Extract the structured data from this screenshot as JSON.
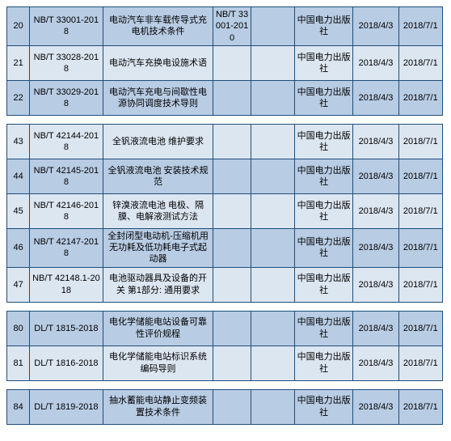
{
  "table": {
    "background_even": "#b8cce4",
    "background_odd": "#dce6f1",
    "border_color": "#1f4e79",
    "font_size": 11,
    "columns": [
      "idx",
      "std",
      "title",
      "replace",
      "col5",
      "publisher",
      "date1",
      "date2"
    ],
    "groups": [
      [
        {
          "idx": "20",
          "std": "NB/T 33001-2018",
          "title": "电动汽车非车载传导式充电机技术条件",
          "replace": "NB/T 33001-2010",
          "col5": "",
          "publisher": "中国电力出版社",
          "date1": "2018/4/3",
          "date2": "2018/7/1"
        },
        {
          "idx": "21",
          "std": "NB/T 33028-2018",
          "title": "电动汽车充换电设施术语",
          "replace": "",
          "col5": "",
          "publisher": "中国电力出版社",
          "date1": "2018/4/3",
          "date2": "2018/7/1"
        },
        {
          "idx": "22",
          "std": "NB/T 33029-2018",
          "title": "电动汽车充电与间歇性电源协同调度技术导则",
          "replace": "",
          "col5": "",
          "publisher": "中国电力出版社",
          "date1": "2018/4/3",
          "date2": "2018/7/1"
        }
      ],
      [
        {
          "idx": "43",
          "std": "NB/T 42144-2018",
          "title": "全钒液流电池 维护要求",
          "replace": "",
          "col5": "",
          "publisher": "中国电力出版社",
          "date1": "2018/4/3",
          "date2": "2018/7/1"
        },
        {
          "idx": "44",
          "std": "NB/T 42145-2018",
          "title": "全钒液流电池 安装技术规范",
          "replace": "",
          "col5": "",
          "publisher": "中国电力出版社",
          "date1": "2018/4/3",
          "date2": "2018/7/1"
        },
        {
          "idx": "45",
          "std": "NB/T 42146-2018",
          "title": "锌溴液流电池 电极、隔膜、电解液测试方法",
          "replace": "",
          "col5": "",
          "publisher": "中国电力出版社",
          "date1": "2018/4/3",
          "date2": "2018/7/1"
        },
        {
          "idx": "46",
          "std": "NB/T 42147-2018",
          "title": "全封闭型电动机-压缩机用无功耗及低功耗电子式起动器",
          "replace": "",
          "col5": "",
          "publisher": "中国电力出版社",
          "date1": "2018/4/3",
          "date2": "2018/7/1"
        },
        {
          "idx": "47",
          "std": "NB/T 42148.1-2018",
          "title": "电池驱动器具及设备的开关 第1部分: 通用要求",
          "replace": "",
          "col5": "",
          "publisher": "中国电力出版社",
          "date1": "2018/4/3",
          "date2": "2018/7/1"
        }
      ],
      [
        {
          "idx": "80",
          "std": "DL/T 1815-2018",
          "title": "电化学储能电站设备可靠性评价规程",
          "replace": "",
          "col5": "",
          "publisher": "中国电力出版社",
          "date1": "2018/4/3",
          "date2": "2018/7/1"
        },
        {
          "idx": "81",
          "std": "DL/T 1816-2018",
          "title": "电化学储能电站标识系统编码导则",
          "replace": "",
          "col5": "",
          "publisher": "中国电力出版社",
          "date1": "2018/4/3",
          "date2": "2018/7/1"
        }
      ],
      [
        {
          "idx": "84",
          "std": "DL/T 1819-2018",
          "title": "抽水蓄能电站静止变频装置技术条件",
          "replace": "",
          "col5": "",
          "publisher": "中国电力出版社",
          "date1": "2018/4/3",
          "date2": "2018/7/1"
        }
      ]
    ]
  }
}
